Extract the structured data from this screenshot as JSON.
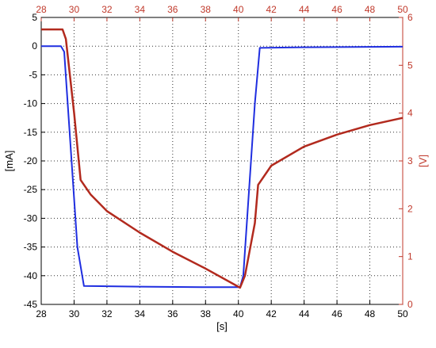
{
  "chart_data": {
    "type": "line",
    "title": "",
    "xlabel": "[s]",
    "ylabel_left": "[mA]",
    "ylabel_right": "[V]",
    "xlim": [
      28,
      50
    ],
    "ylim_left": [
      -45,
      5
    ],
    "ylim_right": [
      0,
      6
    ],
    "x_ticks": [
      "28",
      "30",
      "32",
      "34",
      "36",
      "38",
      "40",
      "42",
      "44",
      "46",
      "48",
      "50"
    ],
    "y_ticks_left": [
      "5",
      "0",
      "-5",
      "-10",
      "-15",
      "-20",
      "-25",
      "-30",
      "-35",
      "-40",
      "-45"
    ],
    "y_ticks_right": [
      "6",
      "5",
      "4",
      "3",
      "2",
      "1",
      "0"
    ],
    "grid": true,
    "colors": {
      "current": "#1f2ee0",
      "voltage": "#b22a1e",
      "right_axis": "#c0392b"
    },
    "series": [
      {
        "axis": "left",
        "x": [
          28.0,
          29.2,
          29.4,
          30.2,
          30.6,
          34.0,
          38.0,
          40.1,
          40.3,
          41.0,
          41.3,
          44.0,
          50.0
        ],
        "values": [
          0.0,
          0.0,
          -1.0,
          -35.0,
          -41.8,
          -41.9,
          -42.0,
          -42.0,
          -40.0,
          -10.0,
          -0.3,
          -0.2,
          -0.1
        ]
      },
      {
        "axis": "right",
        "x": [
          28.0,
          29.3,
          29.5,
          30.0,
          30.4,
          31.0,
          32.0,
          34.0,
          36.0,
          38.0,
          40.1,
          40.4,
          41.0,
          41.2,
          42.0,
          44.0,
          46.0,
          48.0,
          50.0
        ],
        "values": [
          5.75,
          5.75,
          5.55,
          4.0,
          2.6,
          2.3,
          1.95,
          1.5,
          1.1,
          0.75,
          0.35,
          0.6,
          1.7,
          2.5,
          2.9,
          3.3,
          3.55,
          3.75,
          3.9
        ]
      }
    ]
  }
}
